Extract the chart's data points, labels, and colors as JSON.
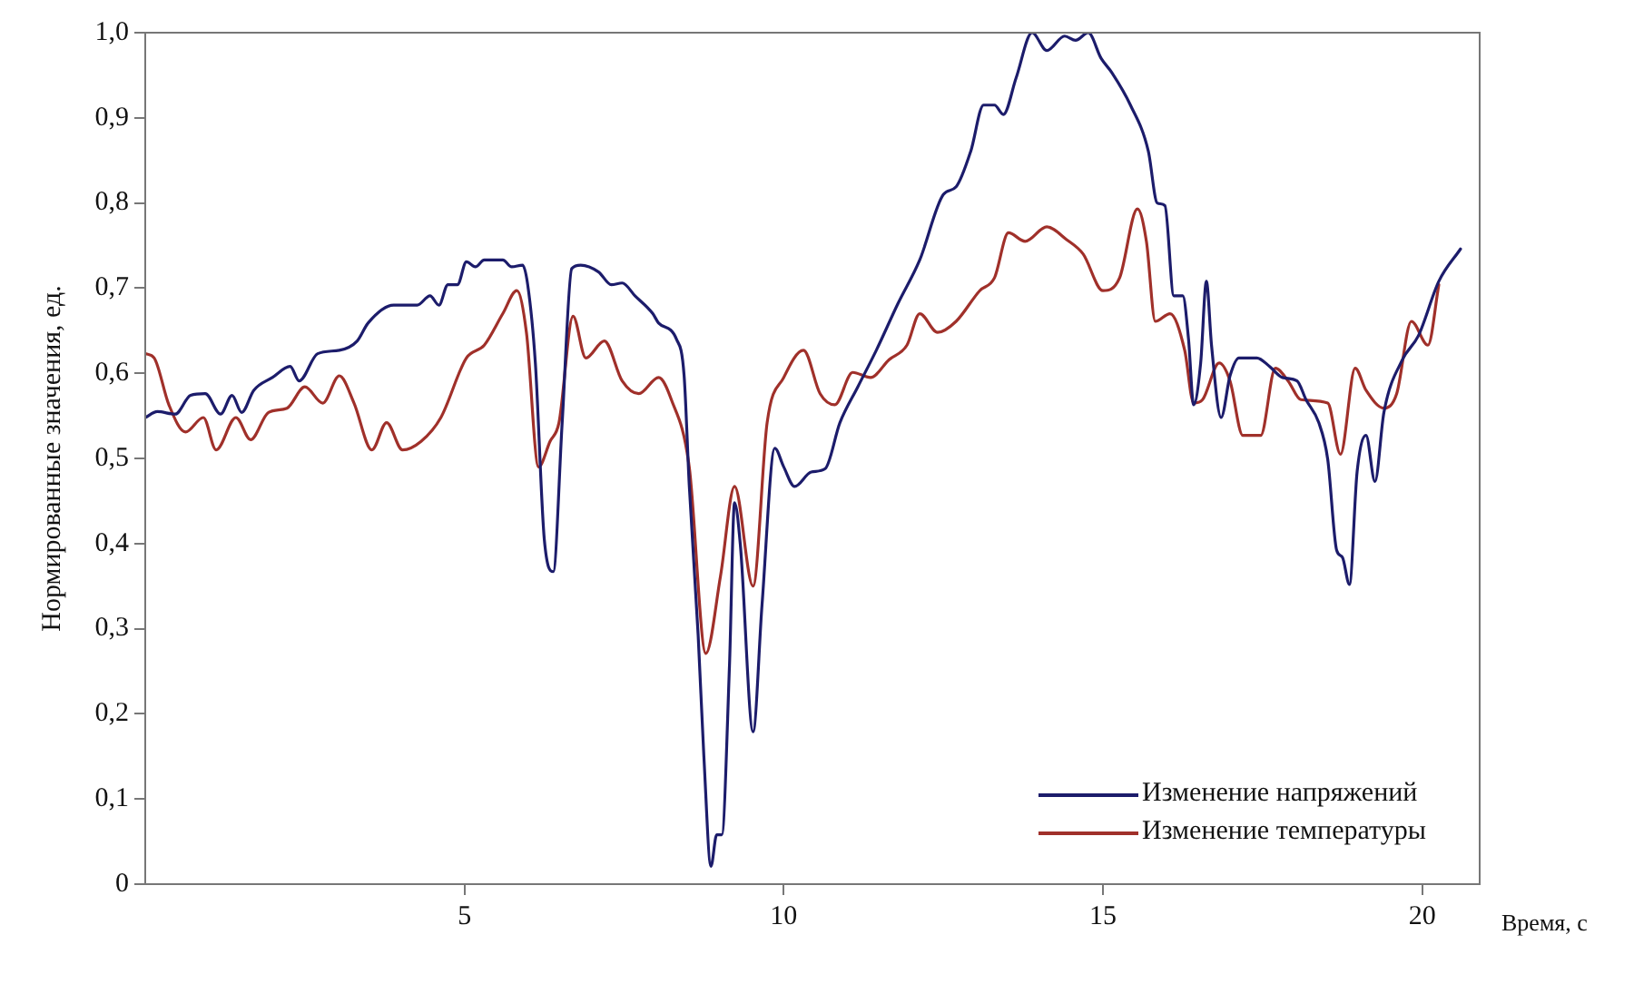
{
  "chart_data": {
    "type": "line",
    "xlabel": "Время, с",
    "ylabel": "Нормированные значения, ед.",
    "xlim": [
      0,
      20.9
    ],
    "xticks": [
      5,
      10,
      15,
      20
    ],
    "ylim": [
      0,
      1
    ],
    "yticks": [
      0,
      {
        "value": 0.1,
        "label": "0,1"
      },
      {
        "value": 0.2,
        "label": "0,2"
      },
      {
        "value": 0.3,
        "label": "0,3"
      },
      {
        "value": 0.4,
        "label": "0,4"
      },
      {
        "value": 0.5,
        "label": "0,5"
      },
      {
        "value": 0.6,
        "label": "0,6"
      },
      {
        "value": 0.7,
        "label": "0,7"
      },
      {
        "value": 0.8,
        "label": "0,8"
      },
      {
        "value": 0.9,
        "label": "0,9"
      },
      {
        "value": 1,
        "label": "1,0"
      }
    ],
    "grid": false,
    "legend": "bottom right",
    "marker": "none",
    "line_style": "solid",
    "series": [
      {
        "name": "Изменение напряжений",
        "color": "#1c1c6b",
        "x": [
          0,
          0.19,
          0.47,
          0.71,
          0.94,
          1.18,
          1.36,
          1.51,
          1.7,
          1.99,
          2.27,
          2.41,
          2.7,
          3.04,
          3.32,
          3.49,
          3.89,
          4.26,
          4.46,
          4.6,
          4.74,
          4.89,
          5.03,
          5.17,
          5.31,
          5.6,
          5.74,
          5.91,
          5.99,
          6.11,
          6.25,
          6.39,
          6.53,
          6.68,
          6.82,
          7.1,
          7.3,
          7.47,
          7.67,
          7.95,
          8.04,
          8.32,
          8.44,
          8.52,
          8.66,
          8.75,
          8.86,
          8.95,
          9.03,
          9.15,
          9.23,
          9.32,
          9.52,
          9.66,
          9.86,
          10,
          10.17,
          10.43,
          10.65,
          10.88,
          11.16,
          11.45,
          11.79,
          12.13,
          12.5,
          12.7,
          12.93,
          13.13,
          13.3,
          13.44,
          13.64,
          13.89,
          14.12,
          14.4,
          14.57,
          14.77,
          14.97,
          15.14,
          15.43,
          15.71,
          15.85,
          15.97,
          16.11,
          16.25,
          16.34,
          16.42,
          16.53,
          16.62,
          16.7,
          16.85,
          16.99,
          17.13,
          17.41,
          17.61,
          17.81,
          18.04,
          18.18,
          18.38,
          18.52,
          18.66,
          18.75,
          18.86,
          18.98,
          19.12,
          19.26,
          19.4,
          19.69,
          19.94,
          20.26,
          20.6
        ],
        "values": [
          0.548,
          0.555,
          0.552,
          0.574,
          0.576,
          0.552,
          0.574,
          0.554,
          0.58,
          0.595,
          0.608,
          0.591,
          0.623,
          0.627,
          0.638,
          0.659,
          0.68,
          0.68,
          0.691,
          0.68,
          0.704,
          0.704,
          0.731,
          0.725,
          0.733,
          0.733,
          0.725,
          0.727,
          0.704,
          0.612,
          0.405,
          0.367,
          0.542,
          0.723,
          0.727,
          0.719,
          0.704,
          0.706,
          0.691,
          0.67,
          0.659,
          0.64,
          0.597,
          0.469,
          0.292,
          0.149,
          0.021,
          0.058,
          0.058,
          0.256,
          0.448,
          0.399,
          0.179,
          0.328,
          0.512,
          0.49,
          0.467,
          0.484,
          0.488,
          0.542,
          0.584,
          0.627,
          0.682,
          0.733,
          0.81,
          0.819,
          0.861,
          0.915,
          0.915,
          0.904,
          0.947,
          1,
          0.979,
          0.996,
          0.991,
          1,
          0.97,
          0.953,
          0.915,
          0.861,
          0.8,
          0.797,
          0.691,
          0.691,
          0.64,
          0.563,
          0.612,
          0.708,
          0.633,
          0.548,
          0.597,
          0.618,
          0.618,
          0.608,
          0.595,
          0.591,
          0.569,
          0.542,
          0.499,
          0.392,
          0.384,
          0.352,
          0.484,
          0.527,
          0.473,
          0.554,
          0.616,
          0.644,
          0.708,
          0.746
        ]
      },
      {
        "name": "Изменение температуры",
        "color": "#a0302a",
        "x": [
          0,
          0.14,
          0.37,
          0.63,
          0.91,
          1.11,
          1.42,
          1.65,
          1.93,
          2.22,
          2.5,
          2.78,
          3.04,
          3.27,
          3.55,
          3.78,
          4.03,
          4.32,
          4.63,
          5.03,
          5.31,
          5.6,
          5.82,
          5.97,
          6.16,
          6.34,
          6.48,
          6.7,
          6.9,
          7.19,
          7.47,
          7.73,
          8.04,
          8.24,
          8.52,
          8.78,
          9.01,
          9.23,
          9.52,
          9.74,
          10,
          10.31,
          10.57,
          10.8,
          11.08,
          11.36,
          11.65,
          11.93,
          12.13,
          12.41,
          12.7,
          13.07,
          13.3,
          13.52,
          13.78,
          14.12,
          14.43,
          14.69,
          15,
          15.26,
          15.54,
          15.68,
          15.82,
          16.05,
          16.28,
          16.42,
          16.56,
          16.82,
          16.99,
          17.19,
          17.47,
          17.7,
          17.9,
          18.1,
          18.52,
          18.72,
          18.95,
          19.12,
          19.4,
          19.6,
          19.83,
          20.09,
          20.26
        ],
        "values": [
          0.623,
          0.618,
          0.563,
          0.531,
          0.548,
          0.51,
          0.548,
          0.522,
          0.554,
          0.559,
          0.584,
          0.565,
          0.597,
          0.565,
          0.51,
          0.542,
          0.51,
          0.52,
          0.548,
          0.618,
          0.633,
          0.67,
          0.697,
          0.648,
          0.49,
          0.52,
          0.542,
          0.667,
          0.618,
          0.638,
          0.591,
          0.576,
          0.595,
          0.569,
          0.49,
          0.271,
          0.362,
          0.467,
          0.35,
          0.542,
          0.595,
          0.627,
          0.576,
          0.563,
          0.601,
          0.595,
          0.616,
          0.633,
          0.67,
          0.648,
          0.661,
          0.697,
          0.712,
          0.765,
          0.755,
          0.772,
          0.757,
          0.74,
          0.697,
          0.712,
          0.793,
          0.755,
          0.661,
          0.67,
          0.627,
          0.565,
          0.569,
          0.612,
          0.591,
          0.527,
          0.527,
          0.606,
          0.591,
          0.569,
          0.565,
          0.505,
          0.606,
          0.58,
          0.559,
          0.576,
          0.661,
          0.633,
          0.704
        ]
      }
    ]
  }
}
